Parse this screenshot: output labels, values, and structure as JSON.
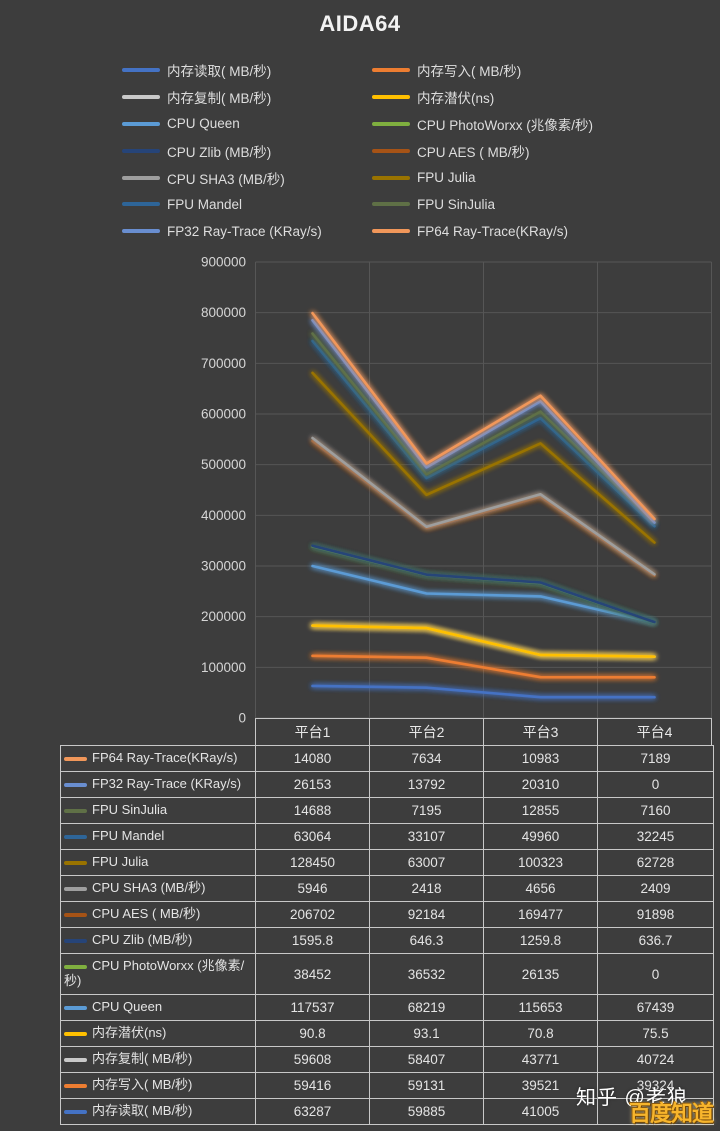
{
  "title": "AIDA64",
  "colors": {
    "background": "#3D3D3D",
    "grid": "#565656",
    "table_border": "#C8C8C8",
    "text": "#E2E2E2"
  },
  "table": {
    "header": [
      "平台1",
      "平台2",
      "平台3",
      "平台4"
    ]
  },
  "watermarks": {
    "zhihu": "知乎 @老狼",
    "baidu": "百度知道"
  },
  "chart_data": {
    "type": "line",
    "stacked": true,
    "title": "AIDA64",
    "categories": [
      "平台1",
      "平台2",
      "平台3",
      "平台4"
    ],
    "ylim": [
      0,
      900000
    ],
    "ytick_step": 100000,
    "grid": true,
    "legend_position": "top",
    "series": [
      {
        "name": "内存读取( MB/秒)",
        "color": "#4472C4",
        "values": [
          63287,
          59885,
          41005,
          41000
        ],
        "table_display": [
          "63287",
          "59885",
          "41005",
          ""
        ]
      },
      {
        "name": "内存写入( MB/秒)",
        "color": "#ED7D31",
        "values": [
          59416,
          59131,
          39521,
          39324
        ]
      },
      {
        "name": "内存复制( MB/秒)",
        "color": "#C9C9C9",
        "values": [
          59608,
          58407,
          43771,
          40724
        ]
      },
      {
        "name": "内存潜伏(ns)",
        "color": "#FFC000",
        "values": [
          90.8,
          93.1,
          70.8,
          75.5
        ]
      },
      {
        "name": "CPU Queen",
        "color": "#5B9BD5",
        "values": [
          117537,
          68219,
          115653,
          67439
        ]
      },
      {
        "name": "CPU PhotoWorxx (兆像素/秒)",
        "color": "#7FAF3F",
        "values": [
          38452,
          36532,
          26135,
          0
        ],
        "two_line_label": true
      },
      {
        "name": "CPU Zlib (MB/秒)",
        "color": "#264478",
        "values": [
          1595.8,
          646.3,
          1259.8,
          636.7
        ]
      },
      {
        "name": "CPU AES ( MB/秒)",
        "color": "#A65316",
        "values": [
          206702,
          92184,
          169477,
          91898
        ]
      },
      {
        "name": "CPU SHA3 (MB/秒)",
        "color": "#9E9E9E",
        "values": [
          5946,
          2418,
          4656,
          2409
        ]
      },
      {
        "name": "FPU Julia",
        "color": "#997300",
        "values": [
          128450,
          63007,
          100323,
          62728
        ]
      },
      {
        "name": "FPU Mandel",
        "color": "#2E6598",
        "values": [
          63064,
          33107,
          49960,
          32245
        ]
      },
      {
        "name": "FPU SinJulia",
        "color": "#5F7046",
        "values": [
          14688,
          7195,
          12855,
          7160
        ]
      },
      {
        "name": "FP32 Ray-Trace (KRay/s)",
        "color": "#698ED0",
        "values": [
          26153,
          13792,
          20310,
          0
        ]
      },
      {
        "name": "FP64 Ray-Trace(KRay/s)",
        "color": "#F1975A",
        "values": [
          14080,
          7634,
          10983,
          7189
        ]
      }
    ]
  }
}
